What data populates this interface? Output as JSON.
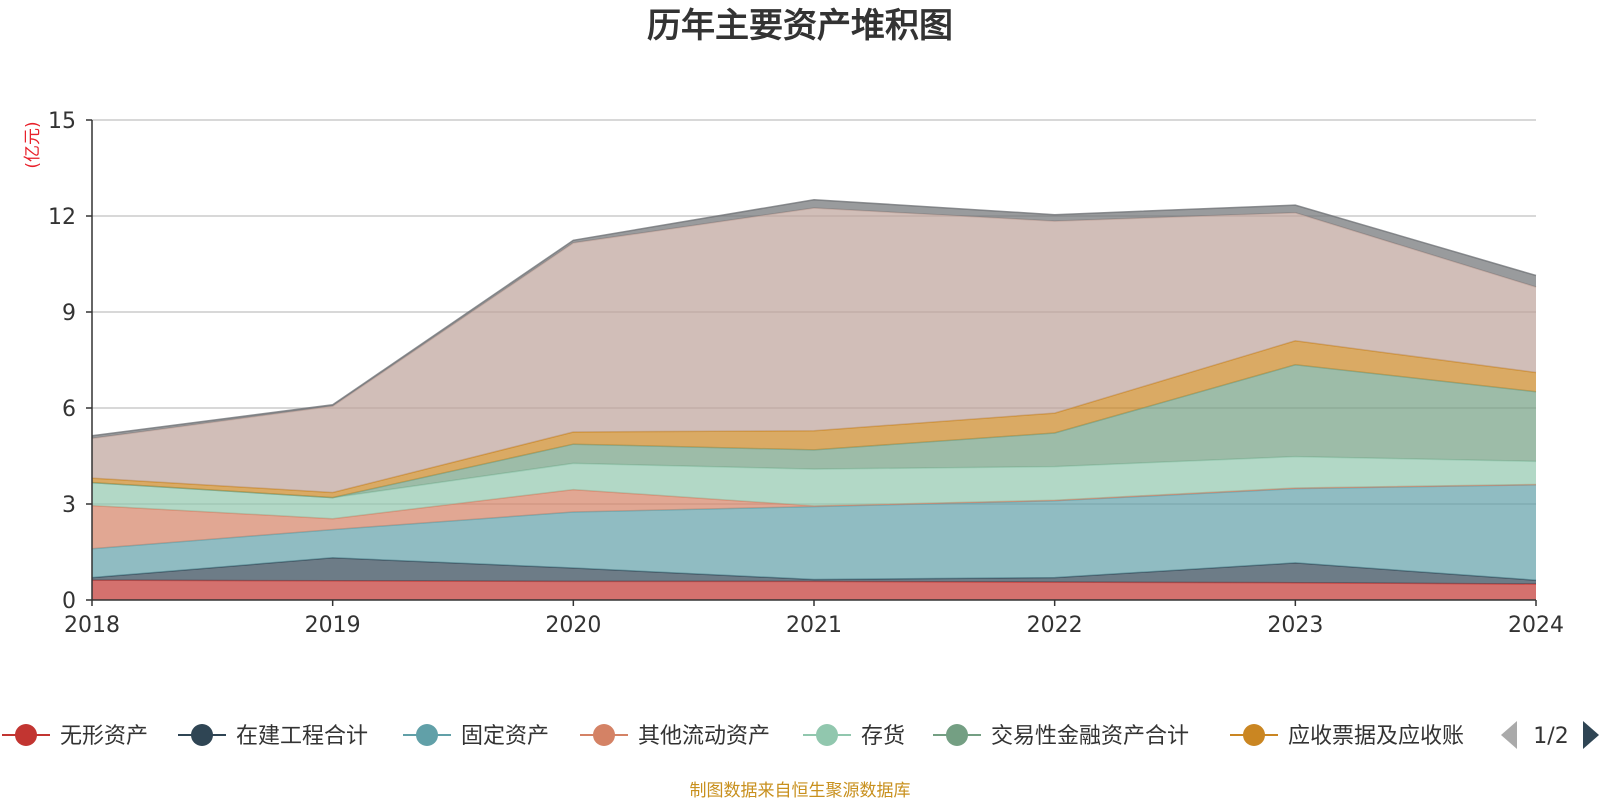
{
  "chart_data": {
    "type": "area",
    "stacked": true,
    "title": "历年主要资产堆积图",
    "unit_label": "(亿元)",
    "x": [
      "2018",
      "2019",
      "2020",
      "2021",
      "2022",
      "2023",
      "2024"
    ],
    "ylim": [
      0,
      15
    ],
    "yticks": [
      "0",
      "3",
      "6",
      "9",
      "12",
      "15"
    ],
    "grid": true,
    "legend_position": "bottom",
    "series": [
      {
        "name": "无形资产",
        "color": "#c23531",
        "values": [
          0.62,
          0.6,
          0.58,
          0.58,
          0.56,
          0.54,
          0.5
        ]
      },
      {
        "name": "在建工程合计",
        "color": "#2f4554",
        "values": [
          0.08,
          0.72,
          0.42,
          0.06,
          0.14,
          0.62,
          0.12
        ]
      },
      {
        "name": "固定资产",
        "color": "#61a0a8",
        "values": [
          0.9,
          0.88,
          1.75,
          2.28,
          2.4,
          2.32,
          2.98
        ]
      },
      {
        "name": "其他流动资产",
        "color": "#d48265",
        "values": [
          1.35,
          0.34,
          0.7,
          0.02,
          0.02,
          0.02,
          0.01
        ]
      },
      {
        "name": "存货",
        "color": "#91c7ae",
        "values": [
          0.72,
          0.66,
          0.82,
          1.15,
          1.05,
          0.98,
          0.72
        ]
      },
      {
        "name": "交易性金融资产合计",
        "color": "#749f83",
        "values": [
          0.0,
          0.0,
          0.6,
          0.6,
          1.05,
          2.87,
          2.18
        ]
      },
      {
        "name": "应收票据及应收账",
        "color": "#ca8622",
        "values": [
          0.14,
          0.16,
          0.38,
          0.6,
          0.62,
          0.75,
          0.6
        ]
      },
      {
        "name": "",
        "color": "#bda29a",
        "values": [
          1.24,
          2.7,
          5.91,
          6.96,
          6.0,
          4.0,
          2.67
        ]
      },
      {
        "name": "",
        "color": "#6e7074",
        "values": [
          0.08,
          0.04,
          0.08,
          0.26,
          0.2,
          0.24,
          0.36
        ]
      }
    ]
  },
  "legend": {
    "page": "1/2",
    "items": [
      {
        "label": "无形资产",
        "color": "#c23531"
      },
      {
        "label": "在建工程合计",
        "color": "#2f4554"
      },
      {
        "label": "固定资产",
        "color": "#61a0a8"
      },
      {
        "label": "其他流动资产",
        "color": "#d48265"
      },
      {
        "label": "存货",
        "color": "#91c7ae"
      },
      {
        "label": "交易性金融资产合计",
        "color": "#749f83"
      },
      {
        "label": "应收票据及应收账",
        "color": "#ca8622"
      }
    ]
  },
  "footer": "制图数据来自恒生聚源数据库"
}
